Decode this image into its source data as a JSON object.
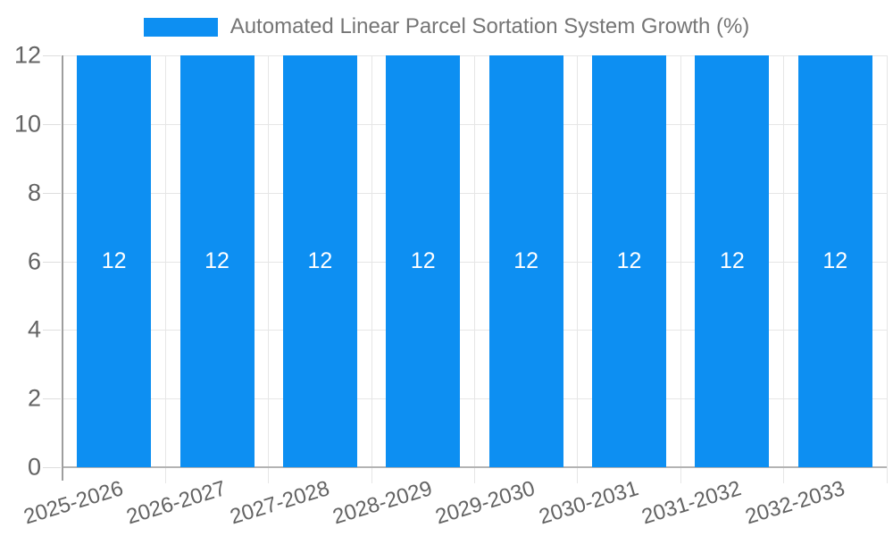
{
  "legend": {
    "label": "Automated Linear Parcel Sortation System Growth (%)"
  },
  "chart_data": {
    "type": "bar",
    "title": "Automated Linear Parcel Sortation System Growth (%)",
    "categories": [
      "2025-2026",
      "2026-2027",
      "2027-2028",
      "2028-2029",
      "2029-2030",
      "2030-2031",
      "2031-2032",
      "2032-2033"
    ],
    "values": [
      12,
      12,
      12,
      12,
      12,
      12,
      12,
      12
    ],
    "bar_value_labels": [
      "12",
      "12",
      "12",
      "12",
      "12",
      "12",
      "12",
      "12"
    ],
    "xlabel": "",
    "ylabel": "",
    "ylim": [
      0,
      12
    ],
    "yticks": [
      0,
      2,
      4,
      6,
      8,
      10,
      12
    ],
    "grid": true,
    "legend_position": "top",
    "colors": {
      "bar": "#0d8ff2",
      "bar_value_text": "#ffffff",
      "gridline": "#e6e6e6",
      "baseline": "#b3b3b3",
      "axis_line": "#9e9e9e",
      "axis_text": "#636363",
      "legend_text": "#757575",
      "background": "#ffffff"
    }
  }
}
